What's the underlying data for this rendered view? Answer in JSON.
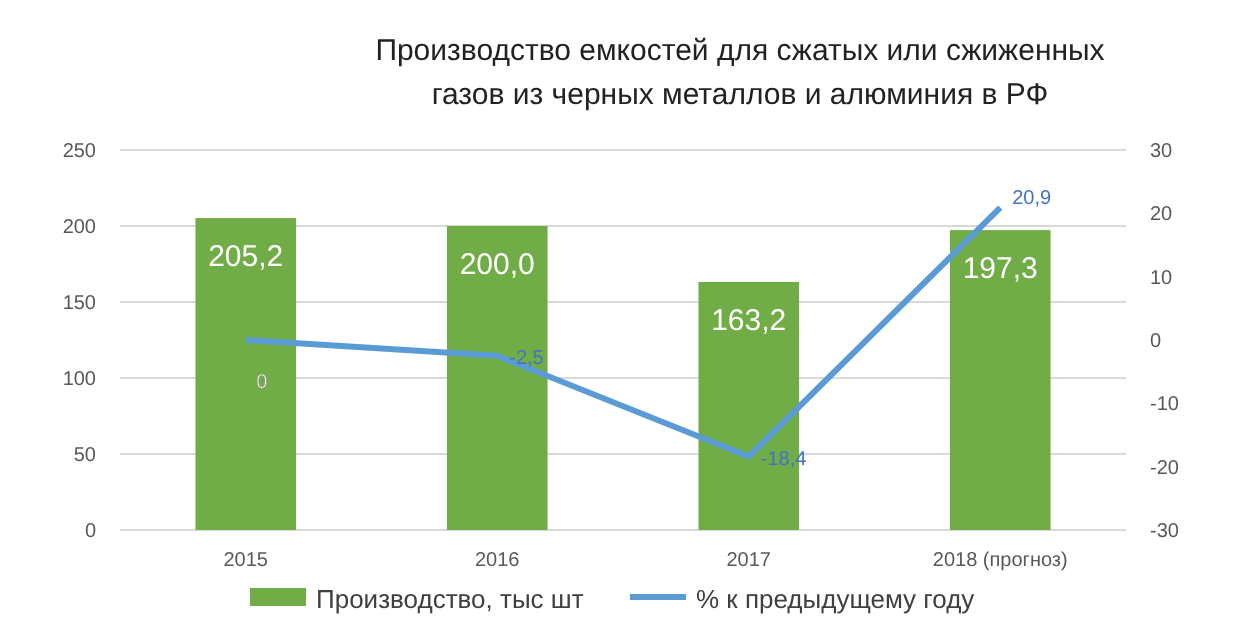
{
  "chart_data": {
    "type": "bar",
    "title": "Производство емкостей для сжатых или сжиженных газов из черных металлов и алюминия в РФ",
    "categories": [
      "2015",
      "2016",
      "2017",
      "2018 (прогноз)"
    ],
    "series": [
      {
        "name": "Производство, тыс шт",
        "type": "bar",
        "color": "#70ad47",
        "values": [
          205.2,
          200.0,
          163.2,
          197.3
        ],
        "value_labels": [
          "205,2",
          "200,0",
          "163,2",
          "197,3"
        ]
      },
      {
        "name": "% к предыдущему году",
        "type": "line",
        "axis": "y2",
        "color": "#5b9bd5",
        "values": [
          0,
          -2.5,
          -18.4,
          20.9
        ],
        "value_labels": [
          "0",
          "-2,5",
          "-18,4",
          "20,9"
        ]
      }
    ],
    "ylim": [
      0,
      250
    ],
    "yticks": [
      0,
      50,
      100,
      150,
      200,
      250
    ],
    "y2lim": [
      -30,
      30
    ],
    "y2ticks": [
      -30,
      -20,
      -10,
      0,
      10,
      20,
      30
    ],
    "grid": "y",
    "legend": "bottom",
    "marker": "none"
  }
}
